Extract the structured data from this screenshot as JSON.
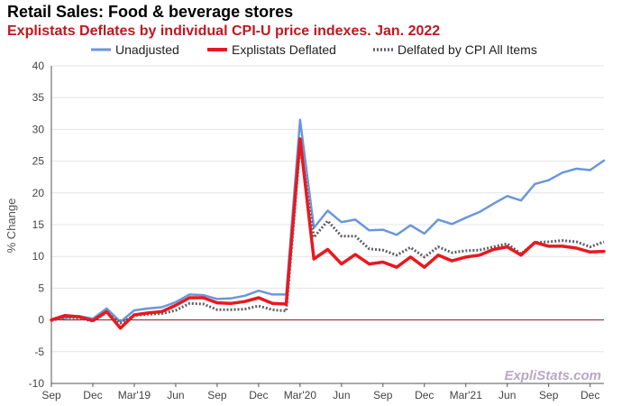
{
  "chart_data": {
    "type": "line",
    "title": "Retail Sales: Food & beverage stores",
    "subtitle": "Explistats Deflates by individual CPI-U price indexes. Jan. 2022",
    "ylabel": "% Change",
    "xlabel": "",
    "ylim": [
      -10,
      40
    ],
    "yticks": [
      -10,
      -5,
      0,
      5,
      10,
      15,
      20,
      25,
      30,
      35,
      40
    ],
    "grid": true,
    "legend_position": "top",
    "watermark": "ExpliStats.com",
    "x": [
      "2018-09",
      "2018-10",
      "2018-11",
      "2018-12",
      "2019-01",
      "2019-02",
      "2019-03",
      "2019-04",
      "2019-05",
      "2019-06",
      "2019-07",
      "2019-08",
      "2019-09",
      "2019-10",
      "2019-11",
      "2019-12",
      "2020-01",
      "2020-02",
      "2020-03",
      "2020-04",
      "2020-05",
      "2020-06",
      "2020-07",
      "2020-08",
      "2020-09",
      "2020-10",
      "2020-11",
      "2020-12",
      "2021-01",
      "2021-02",
      "2021-03",
      "2021-04",
      "2021-05",
      "2021-06",
      "2021-07",
      "2021-08",
      "2021-09",
      "2021-10",
      "2021-11",
      "2021-12",
      "2022-01"
    ],
    "xtick_labels": [
      {
        "x": "2018-09",
        "label": "Sep"
      },
      {
        "x": "2018-12",
        "label": "Dec"
      },
      {
        "x": "2019-03",
        "label": "Mar'19"
      },
      {
        "x": "2019-06",
        "label": "Jun"
      },
      {
        "x": "2019-09",
        "label": "Sep"
      },
      {
        "x": "2019-12",
        "label": "Dec"
      },
      {
        "x": "2020-03",
        "label": "Mar'20"
      },
      {
        "x": "2020-06",
        "label": "Jun"
      },
      {
        "x": "2020-09",
        "label": "Sep"
      },
      {
        "x": "2020-12",
        "label": "Dec"
      },
      {
        "x": "2021-03",
        "label": "Mar'21"
      },
      {
        "x": "2021-06",
        "label": "Jun"
      },
      {
        "x": "2021-09",
        "label": "Sep"
      },
      {
        "x": "2021-12",
        "label": "Dec"
      }
    ],
    "series": [
      {
        "name": "Unadjusted",
        "color": "#6a96dd",
        "style": "solid",
        "values": [
          0.1,
          0.3,
          0.6,
          0.2,
          1.8,
          -0.3,
          1.5,
          1.8,
          2.0,
          2.8,
          4.0,
          3.9,
          3.3,
          3.4,
          3.8,
          4.6,
          4.0,
          4.0,
          31.5,
          14.5,
          17.2,
          15.4,
          15.8,
          14.1,
          14.2,
          13.4,
          14.9,
          13.6,
          15.8,
          15.1,
          16.1,
          17.0,
          18.3,
          19.5,
          18.8,
          21.4,
          22.0,
          23.2,
          23.8,
          23.6,
          25.1
        ]
      },
      {
        "name": "Explistats Deflated",
        "color": "#e8191f",
        "style": "solid",
        "values": [
          0.0,
          0.7,
          0.5,
          -0.1,
          1.3,
          -1.3,
          0.8,
          1.1,
          1.3,
          2.3,
          3.5,
          3.5,
          2.7,
          2.6,
          2.9,
          3.5,
          2.6,
          2.5,
          28.5,
          9.6,
          11.1,
          8.8,
          10.3,
          8.8,
          9.1,
          8.3,
          9.9,
          8.3,
          10.2,
          9.3,
          9.9,
          10.2,
          11.1,
          11.5,
          10.2,
          12.2,
          11.6,
          11.6,
          11.3,
          10.7,
          10.8
        ]
      },
      {
        "name": "Delfated by CPI All Items",
        "color": "#5f6168",
        "style": "dotted",
        "values": [
          -0.1,
          0.4,
          0.3,
          -0.2,
          1.2,
          -0.5,
          0.7,
          0.9,
          1.0,
          1.5,
          2.6,
          2.5,
          1.6,
          1.6,
          1.7,
          2.2,
          1.6,
          1.4,
          27.5,
          13.0,
          15.6,
          13.2,
          13.2,
          11.2,
          11.0,
          10.2,
          11.4,
          9.9,
          11.5,
          10.6,
          10.9,
          11.0,
          11.5,
          12.0,
          10.4,
          12.2,
          12.3,
          12.5,
          12.3,
          11.5,
          12.3
        ]
      }
    ]
  }
}
